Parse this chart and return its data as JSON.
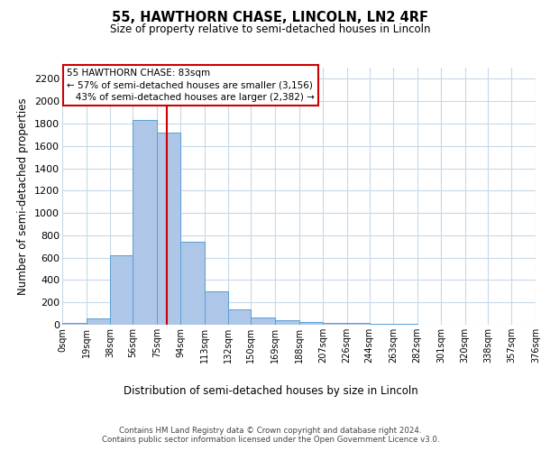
{
  "title1": "55, HAWTHORN CHASE, LINCOLN, LN2 4RF",
  "title2": "Size of property relative to semi-detached houses in Lincoln",
  "xlabel": "Distribution of semi-detached houses by size in Lincoln",
  "ylabel": "Number of semi-detached properties",
  "bin_edges": [
    0,
    19,
    38,
    56,
    75,
    94,
    113,
    132,
    150,
    169,
    188,
    207,
    226,
    244,
    263,
    282,
    301,
    320,
    338,
    357,
    376
  ],
  "bar_heights": [
    15,
    55,
    625,
    1830,
    1720,
    740,
    300,
    140,
    65,
    40,
    25,
    15,
    20,
    5,
    5,
    3,
    2,
    1,
    1,
    1
  ],
  "bar_color": "#aec6e8",
  "bar_edge_color": "#5a9fd4",
  "property_size": 83,
  "vline_color": "#cc0000",
  "annotation_box_color": "#cc0000",
  "annotation_line1": "55 HAWTHORN CHASE: 83sqm",
  "annotation_line2": "← 57% of semi-detached houses are smaller (3,156)",
  "annotation_line3": "   43% of semi-detached houses are larger (2,382) →",
  "ylim": [
    0,
    2300
  ],
  "yticks": [
    0,
    200,
    400,
    600,
    800,
    1000,
    1200,
    1400,
    1600,
    1800,
    2000,
    2200
  ],
  "tick_labels": [
    "0sqm",
    "19sqm",
    "38sqm",
    "56sqm",
    "75sqm",
    "94sqm",
    "113sqm",
    "132sqm",
    "150sqm",
    "169sqm",
    "188sqm",
    "207sqm",
    "226sqm",
    "244sqm",
    "263sqm",
    "282sqm",
    "301sqm",
    "320sqm",
    "338sqm",
    "357sqm",
    "376sqm"
  ],
  "footer": "Contains HM Land Registry data © Crown copyright and database right 2024.\nContains public sector information licensed under the Open Government Licence v3.0.",
  "bg_color": "#ffffff",
  "grid_color": "#c8d8e8"
}
